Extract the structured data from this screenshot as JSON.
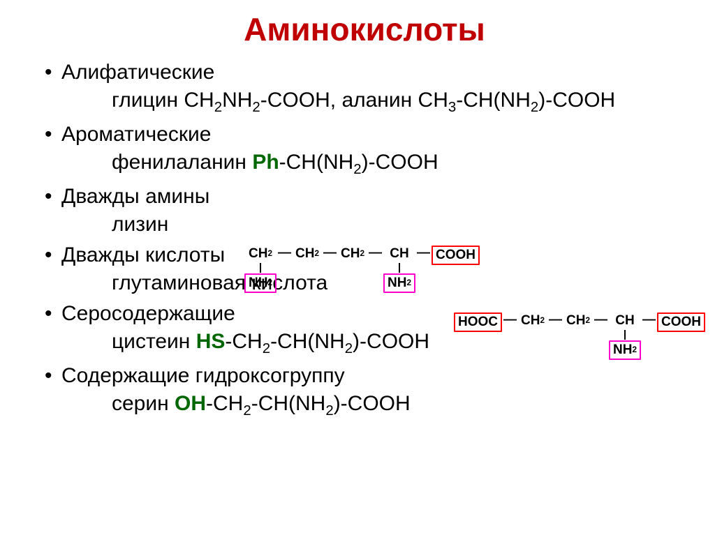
{
  "title": {
    "text": "Аминокислоты",
    "color": "#c00000"
  },
  "colors": {
    "heteroatom": "#006600",
    "box_red": "#ff0000",
    "box_mag": "#ff00cc",
    "text": "#000000"
  },
  "categories": [
    {
      "label": "Алифатические"
    },
    {
      "label": "Ароматические"
    },
    {
      "label": "Дважды амины"
    },
    {
      "label": "Дважды кислоты"
    },
    {
      "label": "Серосодержащие"
    },
    {
      "label": "Содержащие гидроксогруппу"
    }
  ],
  "examples": {
    "aliphatic": {
      "gly_name": "глицин ",
      "gly_formula_plain": "CH",
      "gly_s1": "2",
      "gly_f2": "NH",
      "gly_s2": "2",
      "gly_tail": "-COOH, ",
      "ala_name": "аланин ",
      "ala_formula_plain": "CH",
      "ala_s1": "3",
      "ala_f2": "-CH(NH",
      "ala_s2": "2",
      "ala_tail": ")-COOH"
    },
    "aromatic": {
      "name": "фенилаланин ",
      "het": "Ph",
      "tail1": "-CH(NH",
      "s1": "2",
      "tail2": ")-COOH"
    },
    "diamine": {
      "name": "лизин"
    },
    "diacid": {
      "name": "глутаминовая кислота"
    },
    "sulfur": {
      "name": "цистеин ",
      "het": "HS",
      "t1": "-CH",
      "s1": "2",
      "t2": "-CH(NH",
      "s2": "2",
      "t3": ")-COOH"
    },
    "hydroxy": {
      "name": "серин ",
      "het": "OH",
      "t1": "-CH",
      "s1": "2",
      "t2": "-CH(NH",
      "s2": "2",
      "t3": ")-COOH"
    }
  },
  "struct1": {
    "groups": [
      "CH",
      "CH",
      "CH",
      "CH",
      "COOH"
    ],
    "subs": [
      "2",
      "2",
      "2",
      "",
      ""
    ],
    "below": [
      "NH2",
      "",
      "",
      "NH2",
      ""
    ],
    "below_sub": [
      "2",
      "",
      "",
      "2",
      ""
    ],
    "boxclass": [
      "mag",
      "",
      "",
      "mag",
      "red"
    ]
  },
  "struct2": {
    "groups": [
      "HOOC",
      "CH",
      "CH",
      "CH",
      "COOH"
    ],
    "subs": [
      "",
      "2",
      "2",
      "",
      ""
    ],
    "below": [
      "",
      "",
      "",
      "NH2",
      ""
    ],
    "below_sub": [
      "",
      "",
      "",
      "2",
      ""
    ],
    "boxclass": [
      "red",
      "",
      "",
      "mag",
      "red"
    ]
  }
}
